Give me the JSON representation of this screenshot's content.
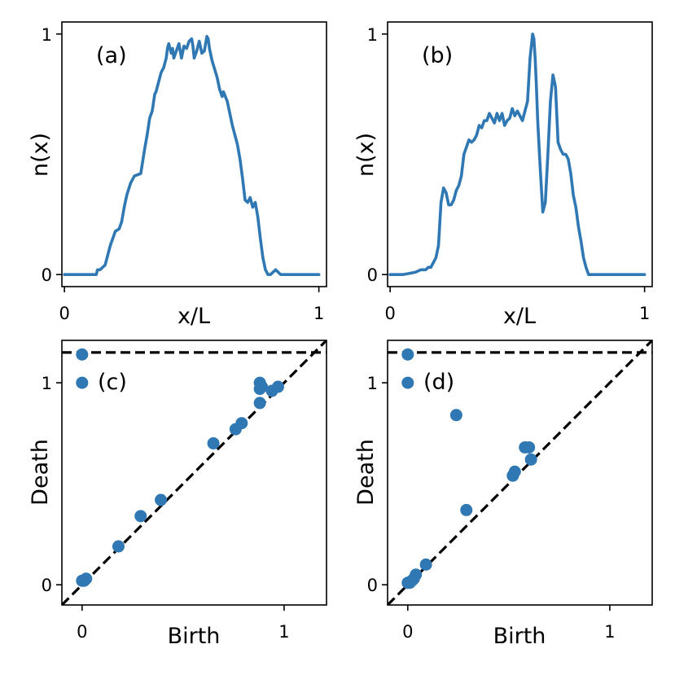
{
  "chart_data": [
    {
      "panel_label": "(a)",
      "type": "line",
      "xlabel": "x/L",
      "ylabel": "n(x)",
      "xlim": [
        -0.01,
        1.03
      ],
      "ylim": [
        -0.05,
        1.05
      ],
      "xticks": [
        0,
        1
      ],
      "xtick_labels": [
        "0",
        "1"
      ],
      "yticks": [
        0,
        1
      ],
      "ytick_labels": [
        "0",
        "1"
      ],
      "color": "#2f78b4",
      "series": [
        {
          "x": [
            0.0,
            0.05,
            0.09,
            0.11,
            0.125,
            0.13,
            0.14,
            0.16,
            0.18,
            0.2,
            0.215,
            0.225,
            0.235,
            0.245,
            0.26,
            0.275,
            0.3,
            0.315,
            0.325,
            0.335,
            0.345,
            0.355,
            0.36,
            0.37,
            0.38,
            0.39,
            0.395,
            0.4,
            0.405,
            0.41,
            0.42,
            0.425,
            0.43,
            0.44,
            0.45,
            0.46,
            0.47,
            0.48,
            0.49,
            0.5,
            0.505,
            0.51,
            0.52,
            0.53,
            0.54,
            0.55,
            0.56,
            0.565,
            0.57,
            0.58,
            0.6,
            0.61,
            0.62,
            0.625,
            0.64,
            0.65,
            0.66,
            0.67,
            0.68,
            0.69,
            0.7,
            0.71,
            0.72,
            0.73,
            0.74,
            0.75,
            0.76,
            0.77,
            0.78,
            0.79,
            0.8,
            0.81,
            0.83,
            0.85,
            0.87,
            0.89,
            0.9,
            1.0
          ],
          "y": [
            0.0,
            0.0,
            0.0,
            0.0,
            0.0,
            0.02,
            0.02,
            0.04,
            0.12,
            0.18,
            0.19,
            0.22,
            0.28,
            0.33,
            0.38,
            0.41,
            0.42,
            0.52,
            0.58,
            0.65,
            0.68,
            0.75,
            0.76,
            0.8,
            0.84,
            0.86,
            0.88,
            0.9,
            0.94,
            0.96,
            0.92,
            0.94,
            0.9,
            0.93,
            0.96,
            0.9,
            0.95,
            0.94,
            0.97,
            0.98,
            0.95,
            0.9,
            0.93,
            0.97,
            0.92,
            0.93,
            0.99,
            0.98,
            0.94,
            0.89,
            0.82,
            0.77,
            0.74,
            0.76,
            0.72,
            0.67,
            0.62,
            0.58,
            0.54,
            0.48,
            0.4,
            0.31,
            0.3,
            0.32,
            0.28,
            0.3,
            0.24,
            0.15,
            0.07,
            0.02,
            0.0,
            0.0,
            0.02,
            0.0,
            0.0,
            0.0,
            0.0,
            0.0
          ]
        }
      ]
    },
    {
      "panel_label": "(b)",
      "type": "line",
      "xlabel": "x/L",
      "ylabel": "n(x)",
      "xlim": [
        -0.01,
        1.03
      ],
      "ylim": [
        -0.05,
        1.05
      ],
      "xticks": [
        0,
        1
      ],
      "xtick_labels": [
        "0",
        "1"
      ],
      "yticks": [
        0,
        1
      ],
      "ytick_labels": [
        "0",
        "1"
      ],
      "color": "#2f78b4",
      "series": [
        {
          "x": [
            0.0,
            0.05,
            0.1,
            0.12,
            0.14,
            0.15,
            0.16,
            0.17,
            0.18,
            0.19,
            0.2,
            0.21,
            0.22,
            0.23,
            0.24,
            0.25,
            0.26,
            0.27,
            0.28,
            0.29,
            0.3,
            0.31,
            0.32,
            0.33,
            0.34,
            0.35,
            0.36,
            0.37,
            0.38,
            0.39,
            0.4,
            0.41,
            0.42,
            0.43,
            0.44,
            0.45,
            0.46,
            0.47,
            0.48,
            0.49,
            0.5,
            0.51,
            0.52,
            0.53,
            0.54,
            0.55,
            0.56,
            0.565,
            0.57,
            0.575,
            0.58,
            0.59,
            0.6,
            0.61,
            0.62,
            0.63,
            0.64,
            0.65,
            0.66,
            0.67,
            0.68,
            0.69,
            0.7,
            0.71,
            0.72,
            0.73,
            0.74,
            0.75,
            0.76,
            0.77,
            0.78,
            0.8,
            1.0
          ],
          "y": [
            0.0,
            0.0,
            0.01,
            0.02,
            0.02,
            0.03,
            0.03,
            0.05,
            0.07,
            0.12,
            0.3,
            0.36,
            0.34,
            0.29,
            0.29,
            0.31,
            0.35,
            0.37,
            0.41,
            0.5,
            0.53,
            0.56,
            0.55,
            0.56,
            0.58,
            0.62,
            0.61,
            0.64,
            0.64,
            0.67,
            0.65,
            0.63,
            0.67,
            0.64,
            0.67,
            0.62,
            0.64,
            0.65,
            0.69,
            0.66,
            0.68,
            0.66,
            0.64,
            0.68,
            0.72,
            0.9,
            1.0,
            0.98,
            0.9,
            0.78,
            0.64,
            0.44,
            0.26,
            0.3,
            0.5,
            0.72,
            0.83,
            0.78,
            0.55,
            0.52,
            0.5,
            0.5,
            0.48,
            0.42,
            0.33,
            0.28,
            0.2,
            0.14,
            0.07,
            0.03,
            0.0,
            0.0,
            0.0
          ]
        }
      ]
    },
    {
      "panel_label": "(c)",
      "type": "scatter",
      "xlabel": "Birth",
      "ylabel": "Death",
      "xlim": [
        -0.1,
        1.21
      ],
      "ylim": [
        -0.1,
        1.21
      ],
      "xticks": [
        0,
        1
      ],
      "xtick_labels": [
        "0",
        "1"
      ],
      "yticks": [
        0,
        1
      ],
      "ytick_labels": [
        "0",
        "1"
      ],
      "infinity_line": 1.15,
      "diagonal": true,
      "color": "#2f78b4",
      "series": [
        {
          "x": [
            0.0,
            0.0,
            0.0,
            0.01,
            0.02,
            0.18,
            0.29,
            0.39,
            0.65,
            0.76,
            0.79,
            0.88,
            0.88,
            0.88,
            0.89,
            0.94,
            0.97
          ],
          "y": [
            1.14,
            1.0,
            0.02,
            0.02,
            0.03,
            0.19,
            0.34,
            0.42,
            0.7,
            0.77,
            0.8,
            0.9,
            0.97,
            1.0,
            0.98,
            0.96,
            0.98
          ]
        }
      ]
    },
    {
      "panel_label": "(d)",
      "type": "scatter",
      "xlabel": "Birth",
      "ylabel": "Death",
      "xlim": [
        -0.1,
        1.21
      ],
      "ylim": [
        -0.1,
        1.21
      ],
      "xticks": [
        0,
        1
      ],
      "xtick_labels": [
        "0",
        "1"
      ],
      "yticks": [
        0,
        1
      ],
      "ytick_labels": [
        "0",
        "1"
      ],
      "infinity_line": 1.15,
      "diagonal": true,
      "color": "#2f78b4",
      "series": [
        {
          "x": [
            0.0,
            0.0,
            0.0,
            0.01,
            0.02,
            0.03,
            0.04,
            0.09,
            0.24,
            0.29,
            0.52,
            0.53,
            0.58,
            0.6,
            0.61
          ],
          "y": [
            1.14,
            1.0,
            0.01,
            0.01,
            0.02,
            0.03,
            0.05,
            0.1,
            0.84,
            0.37,
            0.54,
            0.56,
            0.68,
            0.68,
            0.62
          ]
        }
      ]
    }
  ]
}
